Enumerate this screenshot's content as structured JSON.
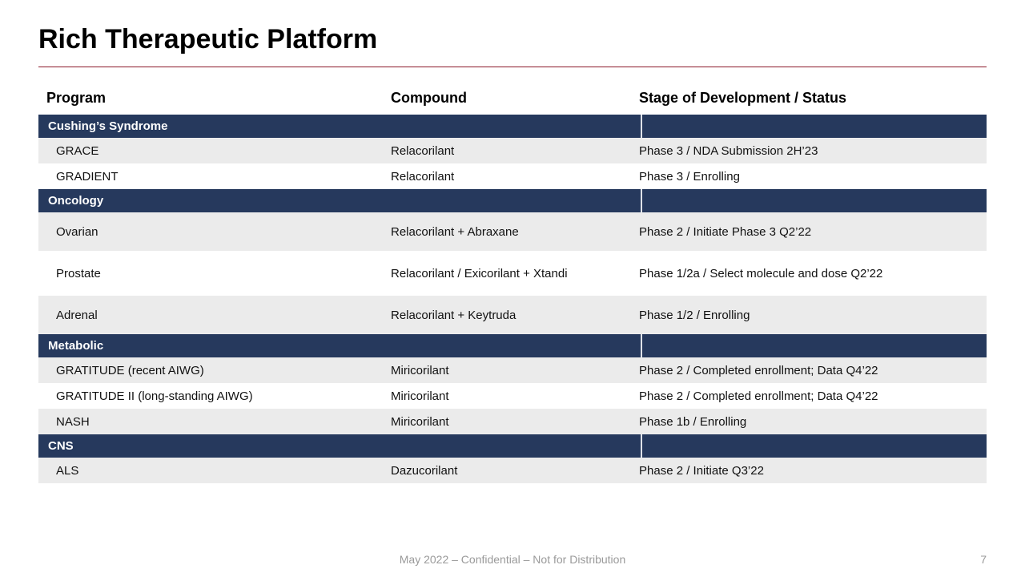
{
  "title": "Rich Therapeutic Platform",
  "rule_color": "#8b1a2b",
  "columns": {
    "program": "Program",
    "compound": "Compound",
    "stage": "Stage of Development / Status"
  },
  "colors": {
    "section_header_bg": "#26395d",
    "section_header_text": "#ffffff",
    "row_alt_bg": "#ebebeb",
    "row_bg": "#ffffff",
    "text": "#111111"
  },
  "sections": [
    {
      "name": "Cushing’s Syndrome",
      "rows": [
        {
          "program": "GRACE",
          "compound": "Relacorilant",
          "stage": "Phase 3 / NDA Submission 2H’23",
          "height": "sm",
          "alt": true
        },
        {
          "program": "GRADIENT",
          "compound": "Relacorilant",
          "stage": "Phase 3 / Enrolling",
          "height": "sm",
          "alt": false
        }
      ]
    },
    {
      "name": "Oncology",
      "rows": [
        {
          "program": "Ovarian",
          "compound": "Relacorilant + Abraxane",
          "stage": "Phase 2 / Initiate Phase 3 Q2’22",
          "height": "md",
          "alt": true
        },
        {
          "program": "Prostate",
          "compound": "Relacorilant / Exicorilant + Xtandi",
          "stage": "Phase 1/2a / Select molecule and dose Q2’22",
          "height": "lg",
          "alt": false
        },
        {
          "program": "Adrenal",
          "compound": "Relacorilant + Keytruda",
          "stage": "Phase 1/2 / Enrolling",
          "height": "md",
          "alt": true
        }
      ]
    },
    {
      "name": "Metabolic",
      "rows": [
        {
          "program": "GRATITUDE (recent AIWG)",
          "compound": "Miricorilant",
          "stage": "Phase 2 / Completed enrollment; Data Q4’22",
          "height": "sm",
          "alt": true
        },
        {
          "program": "GRATITUDE II (long-standing AIWG)",
          "compound": "Miricorilant",
          "stage": "Phase 2 / Completed enrollment; Data Q4’22",
          "height": "sm",
          "alt": false
        },
        {
          "program": "NASH",
          "compound": "Miricorilant",
          "stage": "Phase 1b / Enrolling",
          "height": "sm",
          "alt": true
        }
      ]
    },
    {
      "name": "CNS",
      "rows": [
        {
          "program": "ALS",
          "compound": "Dazucorilant",
          "stage": "Phase 2 / Initiate Q3’22",
          "height": "sm",
          "alt": true
        }
      ]
    }
  ],
  "footer": "May 2022 – Confidential – Not for Distribution",
  "page_number": "7"
}
